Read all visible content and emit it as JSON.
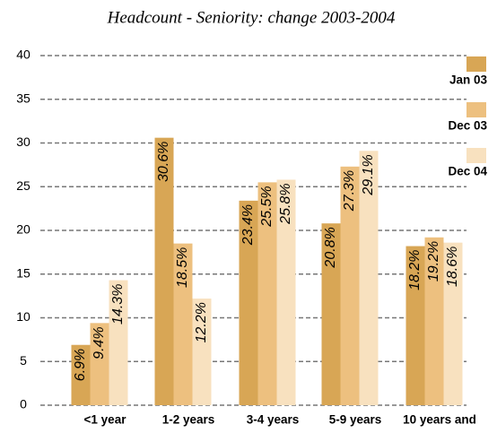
{
  "chart_data": {
    "type": "bar",
    "title": "Headcount - Seniority: change 2003-2004",
    "categories": [
      "<1 year",
      "1-2 years",
      "3-4 years",
      "5-9 years",
      "10 years and"
    ],
    "series": [
      {
        "name": "Jan 03",
        "color": "#d8a655",
        "values": [
          6.9,
          30.6,
          23.4,
          20.8,
          18.2
        ],
        "value_labels": [
          "6.9%",
          "30.6%",
          "23.4%",
          "20.8%",
          "18.2%"
        ]
      },
      {
        "name": "Dec 03",
        "color": "#edc07f",
        "values": [
          9.4,
          18.5,
          25.5,
          27.3,
          19.2
        ],
        "value_labels": [
          "9.4%",
          "18.5%",
          "25.5%",
          "27.3%",
          "19.2%"
        ]
      },
      {
        "name": "Dec 04",
        "color": "#f8e1bf",
        "values": [
          14.3,
          12.2,
          25.8,
          29.1,
          18.6
        ],
        "value_labels": [
          "14.3%",
          "12.2%",
          "25.8%",
          "29.1%",
          "18.6%"
        ]
      }
    ],
    "ylim": [
      0,
      40
    ],
    "yticks": [
      0,
      5,
      10,
      15,
      20,
      25,
      30,
      35,
      40
    ],
    "grid": true,
    "legend": "right"
  }
}
